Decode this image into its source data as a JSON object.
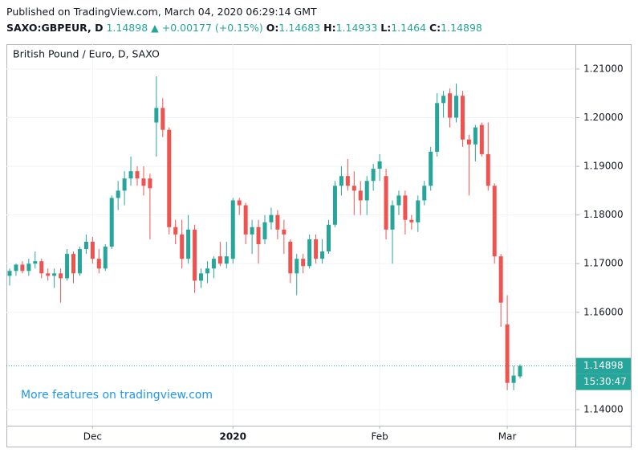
{
  "header": {
    "published": "Published on TradingView.com, March 04, 2020 06:29:14 GMT",
    "symbol": "SAXO:GBPEUR, D",
    "change": "▲ +0.00177 (+0.15%)",
    "open_label": "O:",
    "high_label": "H:",
    "low_label": "L:",
    "close_label": "C:"
  },
  "chart_data": {
    "type": "candlestick",
    "title": "British Pound / Euro, D, SAXO",
    "watermark": "More features on tradingview.com",
    "countdown": "15:30:47",
    "up_color": "#26a69a",
    "down_color": "#ef5350",
    "categories": [
      null,
      null,
      null,
      null,
      null,
      null,
      null,
      null,
      null,
      null,
      null,
      null,
      null,
      "Dec",
      null,
      null,
      null,
      null,
      null,
      null,
      null,
      null,
      null,
      null,
      null,
      null,
      null,
      null,
      null,
      null,
      null,
      null,
      null,
      null,
      null,
      "2020",
      null,
      null,
      null,
      null,
      null,
      null,
      null,
      null,
      null,
      null,
      null,
      null,
      null,
      null,
      null,
      null,
      null,
      null,
      null,
      null,
      null,
      null,
      "Feb",
      null,
      null,
      null,
      null,
      null,
      null,
      null,
      null,
      null,
      null,
      null,
      null,
      null,
      null,
      null,
      null,
      null,
      null,
      null,
      "Mar",
      null,
      null
    ],
    "open": [
      1.1675,
      1.1685,
      1.1698,
      1.1685,
      1.17,
      1.1705,
      1.168,
      1.1675,
      1.168,
      1.167,
      1.172,
      1.168,
      1.173,
      1.1745,
      1.171,
      1.169,
      1.1735,
      1.1835,
      1.185,
      1.1875,
      1.189,
      1.1875,
      1.1875,
      1.199,
      1.202,
      1.1975,
      1.1775,
      1.176,
      1.171,
      1.177,
      1.1665,
      1.168,
      1.169,
      1.1715,
      1.17,
      1.171,
      1.183,
      1.182,
      1.176,
      1.1775,
      1.175,
      1.1785,
      1.18,
      1.177,
      1.1745,
      1.168,
      1.171,
      1.1695,
      1.175,
      1.171,
      1.1725,
      1.178,
      1.186,
      1.188,
      1.186,
      1.185,
      1.183,
      1.187,
      1.1895,
      1.188,
      1.177,
      1.182,
      1.184,
      1.179,
      1.1785,
      1.183,
      1.186,
      1.193,
      1.203,
      1.205,
      1.2,
      1.2045,
      1.1955,
      1.1945,
      1.1985,
      1.1925,
      1.186,
      1.1715,
      1.1575,
      1.1455,
      1.14683
    ],
    "high": [
      1.169,
      1.17,
      1.1705,
      1.171,
      1.1725,
      1.171,
      1.169,
      1.169,
      1.169,
      1.173,
      1.1725,
      1.1735,
      1.176,
      1.1755,
      1.173,
      1.174,
      1.184,
      1.187,
      1.189,
      1.192,
      1.19,
      1.19,
      1.1885,
      1.2085,
      1.204,
      1.198,
      1.179,
      1.179,
      1.18,
      1.178,
      1.169,
      1.1705,
      1.1715,
      1.1745,
      1.1745,
      1.1835,
      1.1835,
      1.1825,
      1.179,
      1.179,
      1.18,
      1.1815,
      1.181,
      1.179,
      1.175,
      1.172,
      1.172,
      1.176,
      1.176,
      1.175,
      1.179,
      1.187,
      1.19,
      1.1915,
      1.189,
      1.187,
      1.188,
      1.1905,
      1.1925,
      1.1895,
      1.183,
      1.185,
      1.185,
      1.18,
      1.184,
      1.187,
      1.194,
      1.205,
      1.2055,
      1.206,
      1.207,
      1.2055,
      1.1965,
      1.1985,
      1.199,
      1.199,
      1.1865,
      1.172,
      1.1635,
      1.149,
      1.14933
    ],
    "low": [
      1.1655,
      1.1675,
      1.168,
      1.1675,
      1.169,
      1.167,
      1.1665,
      1.165,
      1.162,
      1.1665,
      1.166,
      1.1675,
      1.172,
      1.17,
      1.168,
      1.1685,
      1.173,
      1.181,
      1.182,
      1.186,
      1.186,
      1.184,
      1.175,
      1.192,
      1.196,
      1.176,
      1.174,
      1.169,
      1.17,
      1.164,
      1.165,
      1.166,
      1.167,
      1.1695,
      1.169,
      1.17,
      1.18,
      1.174,
      1.172,
      1.17,
      1.174,
      1.177,
      1.175,
      1.172,
      1.166,
      1.1635,
      1.168,
      1.169,
      1.17,
      1.17,
      1.172,
      1.1775,
      1.184,
      1.185,
      1.18,
      1.18,
      1.18,
      1.185,
      1.187,
      1.175,
      1.17,
      1.18,
      1.176,
      1.177,
      1.1765,
      1.182,
      1.185,
      1.192,
      1.2,
      1.198,
      1.199,
      1.194,
      1.184,
      1.191,
      1.192,
      1.185,
      1.17,
      1.157,
      1.144,
      1.144,
      1.1464
    ],
    "close": [
      1.1685,
      1.1698,
      1.1685,
      1.17,
      1.1705,
      1.168,
      1.1675,
      1.168,
      1.167,
      1.172,
      1.168,
      1.173,
      1.1745,
      1.171,
      1.169,
      1.1735,
      1.1835,
      1.185,
      1.1875,
      1.189,
      1.1875,
      1.186,
      1.1855,
      1.202,
      1.1975,
      1.1775,
      1.176,
      1.171,
      1.177,
      1.1665,
      1.168,
      1.169,
      1.171,
      1.17,
      1.1715,
      1.183,
      1.182,
      1.176,
      1.1775,
      1.174,
      1.1785,
      1.18,
      1.177,
      1.176,
      1.168,
      1.171,
      1.1695,
      1.175,
      1.171,
      1.1725,
      1.178,
      1.186,
      1.188,
      1.186,
      1.185,
      1.183,
      1.187,
      1.1895,
      1.191,
      1.177,
      1.182,
      1.184,
      1.179,
      1.1785,
      1.183,
      1.186,
      1.193,
      1.203,
      1.2045,
      1.2,
      1.2045,
      1.1955,
      1.1945,
      1.198,
      1.1925,
      1.186,
      1.1715,
      1.162,
      1.1455,
      1.147,
      1.14898
    ],
    "ylim": [
      1.1367,
      1.2151
    ],
    "yticks": [
      {
        "value": 1.14,
        "label": "1.14000"
      },
      {
        "value": 1.16,
        "label": "1.16000"
      },
      {
        "value": 1.17,
        "label": "1.17000"
      },
      {
        "value": 1.18,
        "label": "1.18000"
      },
      {
        "value": 1.19,
        "label": "1.19000"
      },
      {
        "value": 1.2,
        "label": "1.20000"
      },
      {
        "value": 1.21,
        "label": "1.21000"
      }
    ],
    "grid": true
  }
}
